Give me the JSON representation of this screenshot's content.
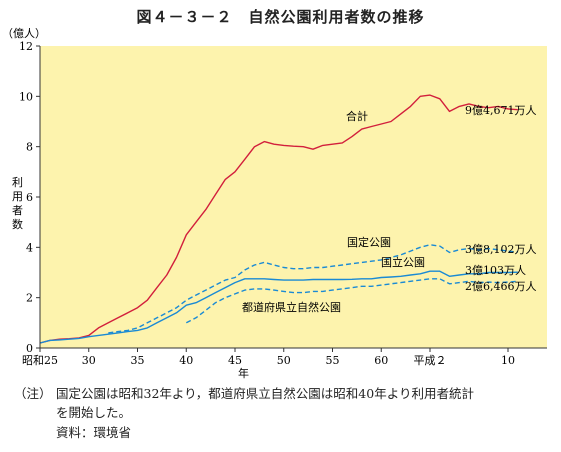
{
  "title": "図４－３－２　自然公園利用者数の推移",
  "notes": {
    "label": "（注）",
    "line1": "国定公園は昭和32年より，都道府県立自然公園は昭和40年より利用者統計",
    "line2": "を開始した。",
    "source": "資料：環境省"
  },
  "colors": {
    "plot_background": "#fdf3ad",
    "total": "#d21f3c",
    "parks": "#1a8ad4",
    "axis": "#333333"
  },
  "chart_data": {
    "type": "line",
    "title": "図４－３－２　自然公園利用者数の推移",
    "ylabel_unit": "（億人）",
    "ylabel": "利用者数",
    "xlabel": "年",
    "ylim": [
      0,
      12
    ],
    "yticks": [
      0,
      2,
      4,
      6,
      8,
      10,
      12
    ],
    "xlim": [
      1950,
      2002
    ],
    "xticks": [
      {
        "x": 1950,
        "label": "昭和25"
      },
      {
        "x": 1955,
        "label": "30"
      },
      {
        "x": 1960,
        "label": "35"
      },
      {
        "x": 1965,
        "label": "40"
      },
      {
        "x": 1970,
        "label": "45"
      },
      {
        "x": 1975,
        "label": "50"
      },
      {
        "x": 1980,
        "label": "55"
      },
      {
        "x": 1985,
        "label": "60"
      },
      {
        "x": 1990,
        "label": "平成２"
      },
      {
        "x": 1998,
        "label": "10"
      }
    ],
    "grid": false,
    "series": [
      {
        "name": "合計",
        "style": "solid",
        "color": "#d21f3c",
        "end_label": "9億4,671万人",
        "x": [
          1950,
          1951,
          1952,
          1953,
          1954,
          1955,
          1956,
          1957,
          1958,
          1959,
          1960,
          1961,
          1962,
          1963,
          1964,
          1965,
          1966,
          1967,
          1968,
          1969,
          1970,
          1971,
          1972,
          1973,
          1974,
          1975,
          1976,
          1977,
          1978,
          1979,
          1980,
          1981,
          1982,
          1983,
          1984,
          1985,
          1986,
          1987,
          1988,
          1989,
          1990,
          1991,
          1992,
          1993,
          1994,
          1995,
          1996,
          1997,
          1998,
          1999
        ],
        "y": [
          0.2,
          0.3,
          0.35,
          0.37,
          0.4,
          0.5,
          0.8,
          1.0,
          1.2,
          1.4,
          1.6,
          1.9,
          2.4,
          2.9,
          3.6,
          4.5,
          5.0,
          5.5,
          6.1,
          6.7,
          7.0,
          7.5,
          8.0,
          8.2,
          8.1,
          8.05,
          8.02,
          8.0,
          7.9,
          8.05,
          8.1,
          8.15,
          8.4,
          8.7,
          8.8,
          8.9,
          9.0,
          9.3,
          9.6,
          10.0,
          10.05,
          9.9,
          9.4,
          9.6,
          9.7,
          9.6,
          9.55,
          9.6,
          9.5,
          9.47
        ]
      },
      {
        "name": "国定公園",
        "style": "dashed",
        "color": "#1a8ad4",
        "end_label": "3億8,102万人",
        "x": [
          1957,
          1958,
          1959,
          1960,
          1961,
          1962,
          1963,
          1964,
          1965,
          1966,
          1967,
          1968,
          1969,
          1970,
          1971,
          1972,
          1973,
          1974,
          1975,
          1976,
          1977,
          1978,
          1979,
          1980,
          1981,
          1982,
          1983,
          1984,
          1985,
          1986,
          1987,
          1988,
          1989,
          1990,
          1991,
          1992,
          1993,
          1994,
          1995,
          1996,
          1997,
          1998,
          1999
        ],
        "y": [
          0.6,
          0.65,
          0.7,
          0.8,
          1.0,
          1.2,
          1.4,
          1.6,
          1.9,
          2.1,
          2.3,
          2.5,
          2.7,
          2.8,
          3.1,
          3.3,
          3.4,
          3.3,
          3.2,
          3.15,
          3.15,
          3.2,
          3.2,
          3.25,
          3.3,
          3.35,
          3.4,
          3.45,
          3.5,
          3.6,
          3.7,
          3.85,
          4.0,
          4.1,
          4.05,
          3.8,
          3.9,
          3.95,
          3.9,
          3.95,
          3.9,
          3.85,
          3.81
        ]
      },
      {
        "name": "国立公園",
        "style": "solid",
        "color": "#1a8ad4",
        "end_label": "3億103万人",
        "x": [
          1950,
          1951,
          1952,
          1953,
          1954,
          1955,
          1956,
          1957,
          1958,
          1959,
          1960,
          1961,
          1962,
          1963,
          1964,
          1965,
          1966,
          1967,
          1968,
          1969,
          1970,
          1971,
          1972,
          1973,
          1974,
          1975,
          1976,
          1977,
          1978,
          1979,
          1980,
          1981,
          1982,
          1983,
          1984,
          1985,
          1986,
          1987,
          1988,
          1989,
          1990,
          1991,
          1992,
          1993,
          1994,
          1995,
          1996,
          1997,
          1998,
          1999
        ],
        "y": [
          0.2,
          0.3,
          0.32,
          0.35,
          0.38,
          0.45,
          0.5,
          0.55,
          0.6,
          0.65,
          0.7,
          0.8,
          1.0,
          1.2,
          1.4,
          1.7,
          1.8,
          2.0,
          2.2,
          2.4,
          2.6,
          2.75,
          2.75,
          2.75,
          2.72,
          2.7,
          2.7,
          2.7,
          2.72,
          2.72,
          2.72,
          2.72,
          2.73,
          2.75,
          2.75,
          2.8,
          2.82,
          2.85,
          2.9,
          2.95,
          3.05,
          3.05,
          2.85,
          2.9,
          2.95,
          2.95,
          3.0,
          3.0,
          3.0,
          3.01
        ]
      },
      {
        "name": "都道府県立自然公園",
        "style": "dashed",
        "color": "#1a8ad4",
        "end_label": "2億6,466万人",
        "x": [
          1965,
          1966,
          1967,
          1968,
          1969,
          1970,
          1971,
          1972,
          1973,
          1974,
          1975,
          1976,
          1977,
          1978,
          1979,
          1980,
          1981,
          1982,
          1983,
          1984,
          1985,
          1986,
          1987,
          1988,
          1989,
          1990,
          1991,
          1992,
          1993,
          1994,
          1995,
          1996,
          1997,
          1998,
          1999
        ],
        "y": [
          1.0,
          1.2,
          1.5,
          1.8,
          2.0,
          2.15,
          2.3,
          2.35,
          2.35,
          2.3,
          2.25,
          2.2,
          2.2,
          2.25,
          2.25,
          2.3,
          2.35,
          2.4,
          2.45,
          2.45,
          2.5,
          2.55,
          2.6,
          2.65,
          2.7,
          2.75,
          2.75,
          2.55,
          2.6,
          2.65,
          2.6,
          2.62,
          2.6,
          2.62,
          2.65
        ]
      }
    ]
  }
}
